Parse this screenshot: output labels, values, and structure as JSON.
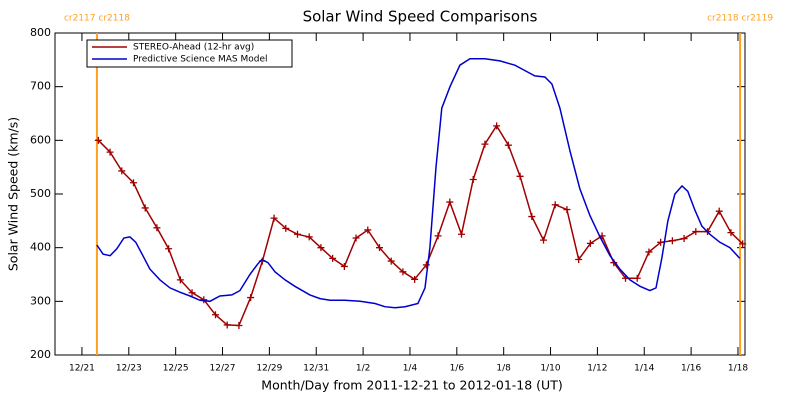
{
  "chart_data": {
    "type": "line",
    "title": "Solar Wind Speed Comparisons",
    "xlabel": "Month/Day from 2011-12-21 to 2012-01-18 (UT)",
    "ylabel": "Solar Wind Speed (km/s)",
    "xlim": [
      -1.15,
      28.3
    ],
    "ylim": [
      200,
      800
    ],
    "xticks": [
      {
        "value": 0,
        "label": "12/21"
      },
      {
        "value": 2,
        "label": "12/23"
      },
      {
        "value": 4,
        "label": "12/25"
      },
      {
        "value": 6,
        "label": "12/27"
      },
      {
        "value": 8,
        "label": "12/29"
      },
      {
        "value": 10,
        "label": "12/31"
      },
      {
        "value": 12,
        "label": "1/2"
      },
      {
        "value": 14,
        "label": "1/4"
      },
      {
        "value": 16,
        "label": "1/6"
      },
      {
        "value": 18,
        "label": "1/8"
      },
      {
        "value": 20,
        "label": "1/10"
      },
      {
        "value": 22,
        "label": "1/12"
      },
      {
        "value": 24,
        "label": "1/14"
      },
      {
        "value": 26,
        "label": "1/16"
      },
      {
        "value": 28,
        "label": "1/18"
      }
    ],
    "yticks": [
      200,
      300,
      400,
      500,
      600,
      700,
      800
    ],
    "legend": "upper left",
    "annotations": [
      {
        "x": 0.64,
        "label": "cr2117 cr2118",
        "color": "#ffa020"
      },
      {
        "x": 28.09,
        "label": "cr2118 cr2119",
        "color": "#ffa020"
      }
    ],
    "series": [
      {
        "name": "STEREO-Ahead (12-hr avg)",
        "color": "#a00000",
        "markers": true,
        "x": [
          0.7,
          1.2,
          1.7,
          2.2,
          2.7,
          3.2,
          3.7,
          4.2,
          4.7,
          5.2,
          5.7,
          6.2,
          6.7,
          7.2,
          7.7,
          8.2,
          8.7,
          9.2,
          9.7,
          10.2,
          10.7,
          11.2,
          11.7,
          12.2,
          12.7,
          13.2,
          13.7,
          14.2,
          14.7,
          15.2,
          15.7,
          16.2,
          16.7,
          17.2,
          17.7,
          18.2,
          18.7,
          19.2,
          19.7,
          20.2,
          20.7,
          21.2,
          21.7,
          22.2,
          22.7,
          23.2,
          23.7,
          24.2,
          24.7,
          25.2,
          25.7,
          26.2,
          26.7,
          27.2,
          27.7,
          28.2
        ],
        "values": [
          600,
          578,
          543,
          521,
          474,
          437,
          398,
          340,
          316,
          303,
          275,
          256,
          255,
          307,
          375,
          455,
          436,
          425,
          420,
          400,
          380,
          365,
          418,
          433,
          400,
          375,
          355,
          341,
          368,
          422,
          485,
          425,
          527,
          593,
          627,
          591,
          533,
          458,
          414,
          480,
          471,
          378,
          408,
          422,
          372,
          343,
          343,
          392,
          410,
          413,
          417,
          430,
          430,
          468,
          428,
          407
        ]
      },
      {
        "name": "Predictive Science MAS Model",
        "color": "#0000cc",
        "markers": false,
        "x": [
          0.64,
          0.9,
          1.2,
          1.49,
          1.79,
          2.05,
          2.3,
          2.6,
          2.9,
          3.33,
          3.76,
          4.18,
          4.61,
          5.04,
          5.46,
          5.89,
          6.4,
          6.74,
          7.17,
          7.51,
          7.68,
          7.94,
          8.24,
          8.67,
          9.09,
          9.73,
          10.16,
          10.59,
          11.22,
          11.87,
          12.51,
          12.93,
          13.36,
          13.79,
          14.34,
          14.64,
          14.85,
          15.11,
          15.36,
          15.71,
          16.13,
          16.56,
          17.2,
          17.84,
          18.48,
          18.91,
          19.33,
          19.76,
          20.06,
          20.4,
          20.83,
          21.25,
          21.68,
          22.11,
          22.54,
          22.96,
          23.39,
          23.82,
          24.24,
          24.5,
          24.75,
          25.01,
          25.31,
          25.61,
          25.86,
          26.16,
          26.46,
          26.8,
          27.23,
          27.66,
          28.08
        ],
        "values": [
          405,
          388,
          385,
          398,
          418,
          420,
          410,
          385,
          360,
          340,
          325,
          317,
          310,
          302,
          300,
          310,
          312,
          320,
          350,
          370,
          378,
          372,
          355,
          340,
          328,
          312,
          305,
          302,
          302,
          300,
          296,
          290,
          288,
          290,
          296,
          325,
          400,
          550,
          660,
          700,
          740,
          752,
          752,
          748,
          740,
          730,
          720,
          718,
          705,
          660,
          580,
          510,
          460,
          420,
          385,
          360,
          340,
          328,
          320,
          325,
          380,
          450,
          500,
          515,
          505,
          470,
          440,
          425,
          410,
          400,
          380
        ]
      }
    ]
  }
}
